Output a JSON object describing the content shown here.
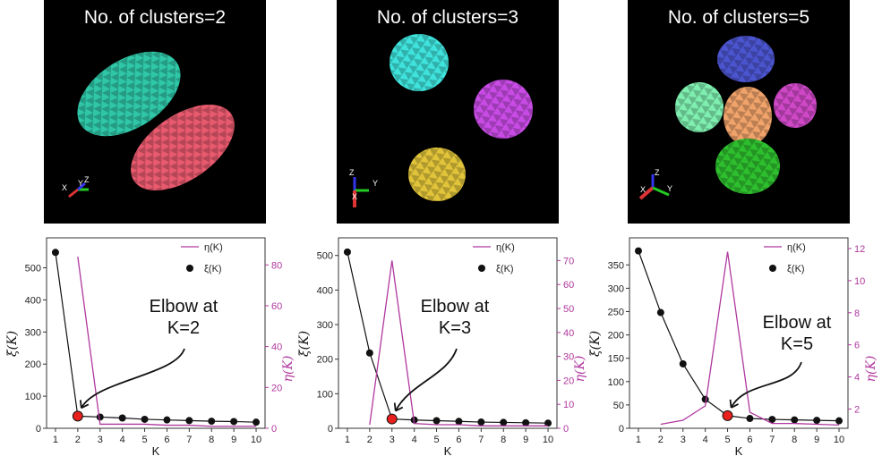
{
  "panels": [
    {
      "title": "No. of clusters=2",
      "axes": [
        "X",
        "Y",
        "Z"
      ],
      "blobs": [
        {
          "color": "#2fc7a8",
          "name": "cluster-1"
        },
        {
          "color": "#e85a6e",
          "name": "cluster-2"
        }
      ]
    },
    {
      "title": "No. of clusters=3",
      "axes": [
        "Z",
        "X",
        "Y"
      ],
      "blobs": [
        {
          "color": "#3fe3dc",
          "name": "cluster-1"
        },
        {
          "color": "#c94be6",
          "name": "cluster-2"
        },
        {
          "color": "#e2c43a",
          "name": "cluster-3"
        }
      ]
    },
    {
      "title": "No. of clusters=5",
      "axes": [
        "Z",
        "X",
        "Y"
      ],
      "blobs": [
        {
          "color": "#4b55cf",
          "name": "cluster-1"
        },
        {
          "color": "#7fefb0",
          "name": "cluster-2"
        },
        {
          "color": "#f0a36a",
          "name": "cluster-3"
        },
        {
          "color": "#d048c8",
          "name": "cluster-4"
        },
        {
          "color": "#2ebf2e",
          "name": "cluster-5"
        }
      ]
    }
  ],
  "chart_data": [
    {
      "type": "line",
      "x": [
        1,
        2,
        3,
        4,
        5,
        6,
        7,
        8,
        9,
        10
      ],
      "xlabel": "K",
      "ylabel": "ξ(K)",
      "y2label": "η(K)",
      "ylim": [
        0,
        560
      ],
      "y_ticks": [
        0,
        100,
        200,
        300,
        400,
        500
      ],
      "y2lim": [
        0,
        88
      ],
      "y2_ticks": [
        0,
        20,
        40,
        60,
        80
      ],
      "series": [
        {
          "name": "ξ(K)",
          "axis": "left",
          "color": "#111111",
          "values": [
            548,
            38,
            35,
            32,
            28,
            26,
            24,
            22,
            21,
            19
          ]
        },
        {
          "name": "η(K)",
          "axis": "right",
          "color": "#b0389f",
          "values": [
            null,
            84,
            2,
            2,
            2,
            1.5,
            1.5,
            1,
            1,
            1
          ]
        }
      ],
      "elbow": {
        "k": 2,
        "label_line1": "Elbow at",
        "label_line2": "K=2"
      },
      "legend": "top-right"
    },
    {
      "type": "line",
      "x": [
        1,
        2,
        3,
        4,
        5,
        6,
        7,
        8,
        9,
        10
      ],
      "xlabel": "K",
      "ylabel": "ξ(K)",
      "y2label": "η(K)",
      "ylim": [
        0,
        520
      ],
      "y_ticks": [
        0,
        100,
        200,
        300,
        400,
        500
      ],
      "y2lim": [
        0,
        75
      ],
      "y2_ticks": [
        0,
        10,
        20,
        30,
        40,
        50,
        60,
        70
      ],
      "series": [
        {
          "name": "ξ(K)",
          "axis": "left",
          "color": "#111111",
          "values": [
            510,
            218,
            27,
            24,
            22,
            20,
            18,
            17,
            16,
            15
          ]
        },
        {
          "name": "η(K)",
          "axis": "right",
          "color": "#b0389f",
          "values": [
            null,
            1.5,
            70,
            2,
            1.5,
            1.5,
            1,
            1,
            1,
            1
          ]
        }
      ],
      "elbow": {
        "k": 3,
        "label_line1": "Elbow at",
        "label_line2": "K=3"
      },
      "legend": "top-right"
    },
    {
      "type": "line",
      "x": [
        1,
        2,
        3,
        4,
        5,
        6,
        7,
        8,
        9,
        10
      ],
      "xlabel": "K",
      "ylabel": "ξ(K)",
      "y2label": "η(K)",
      "ylim": [
        0,
        385
      ],
      "y_ticks": [
        0,
        50,
        100,
        150,
        200,
        250,
        300,
        350
      ],
      "y2lim": [
        0.8,
        12
      ],
      "y2_ticks": [
        2,
        4,
        6,
        8,
        10,
        12
      ],
      "series": [
        {
          "name": "ξ(K)",
          "axis": "left",
          "color": "#111111",
          "values": [
            380,
            248,
            138,
            62,
            27,
            21,
            19,
            18,
            17,
            16
          ]
        },
        {
          "name": "η(K)",
          "axis": "right",
          "color": "#b0389f",
          "values": [
            null,
            1.05,
            1.3,
            2.2,
            11.8,
            1.8,
            1.1,
            1.1,
            1.05,
            1.0
          ]
        }
      ],
      "elbow": {
        "k": 5,
        "label_line1": "Elbow at",
        "label_line2": "K=5"
      },
      "legend": "top-right"
    }
  ]
}
